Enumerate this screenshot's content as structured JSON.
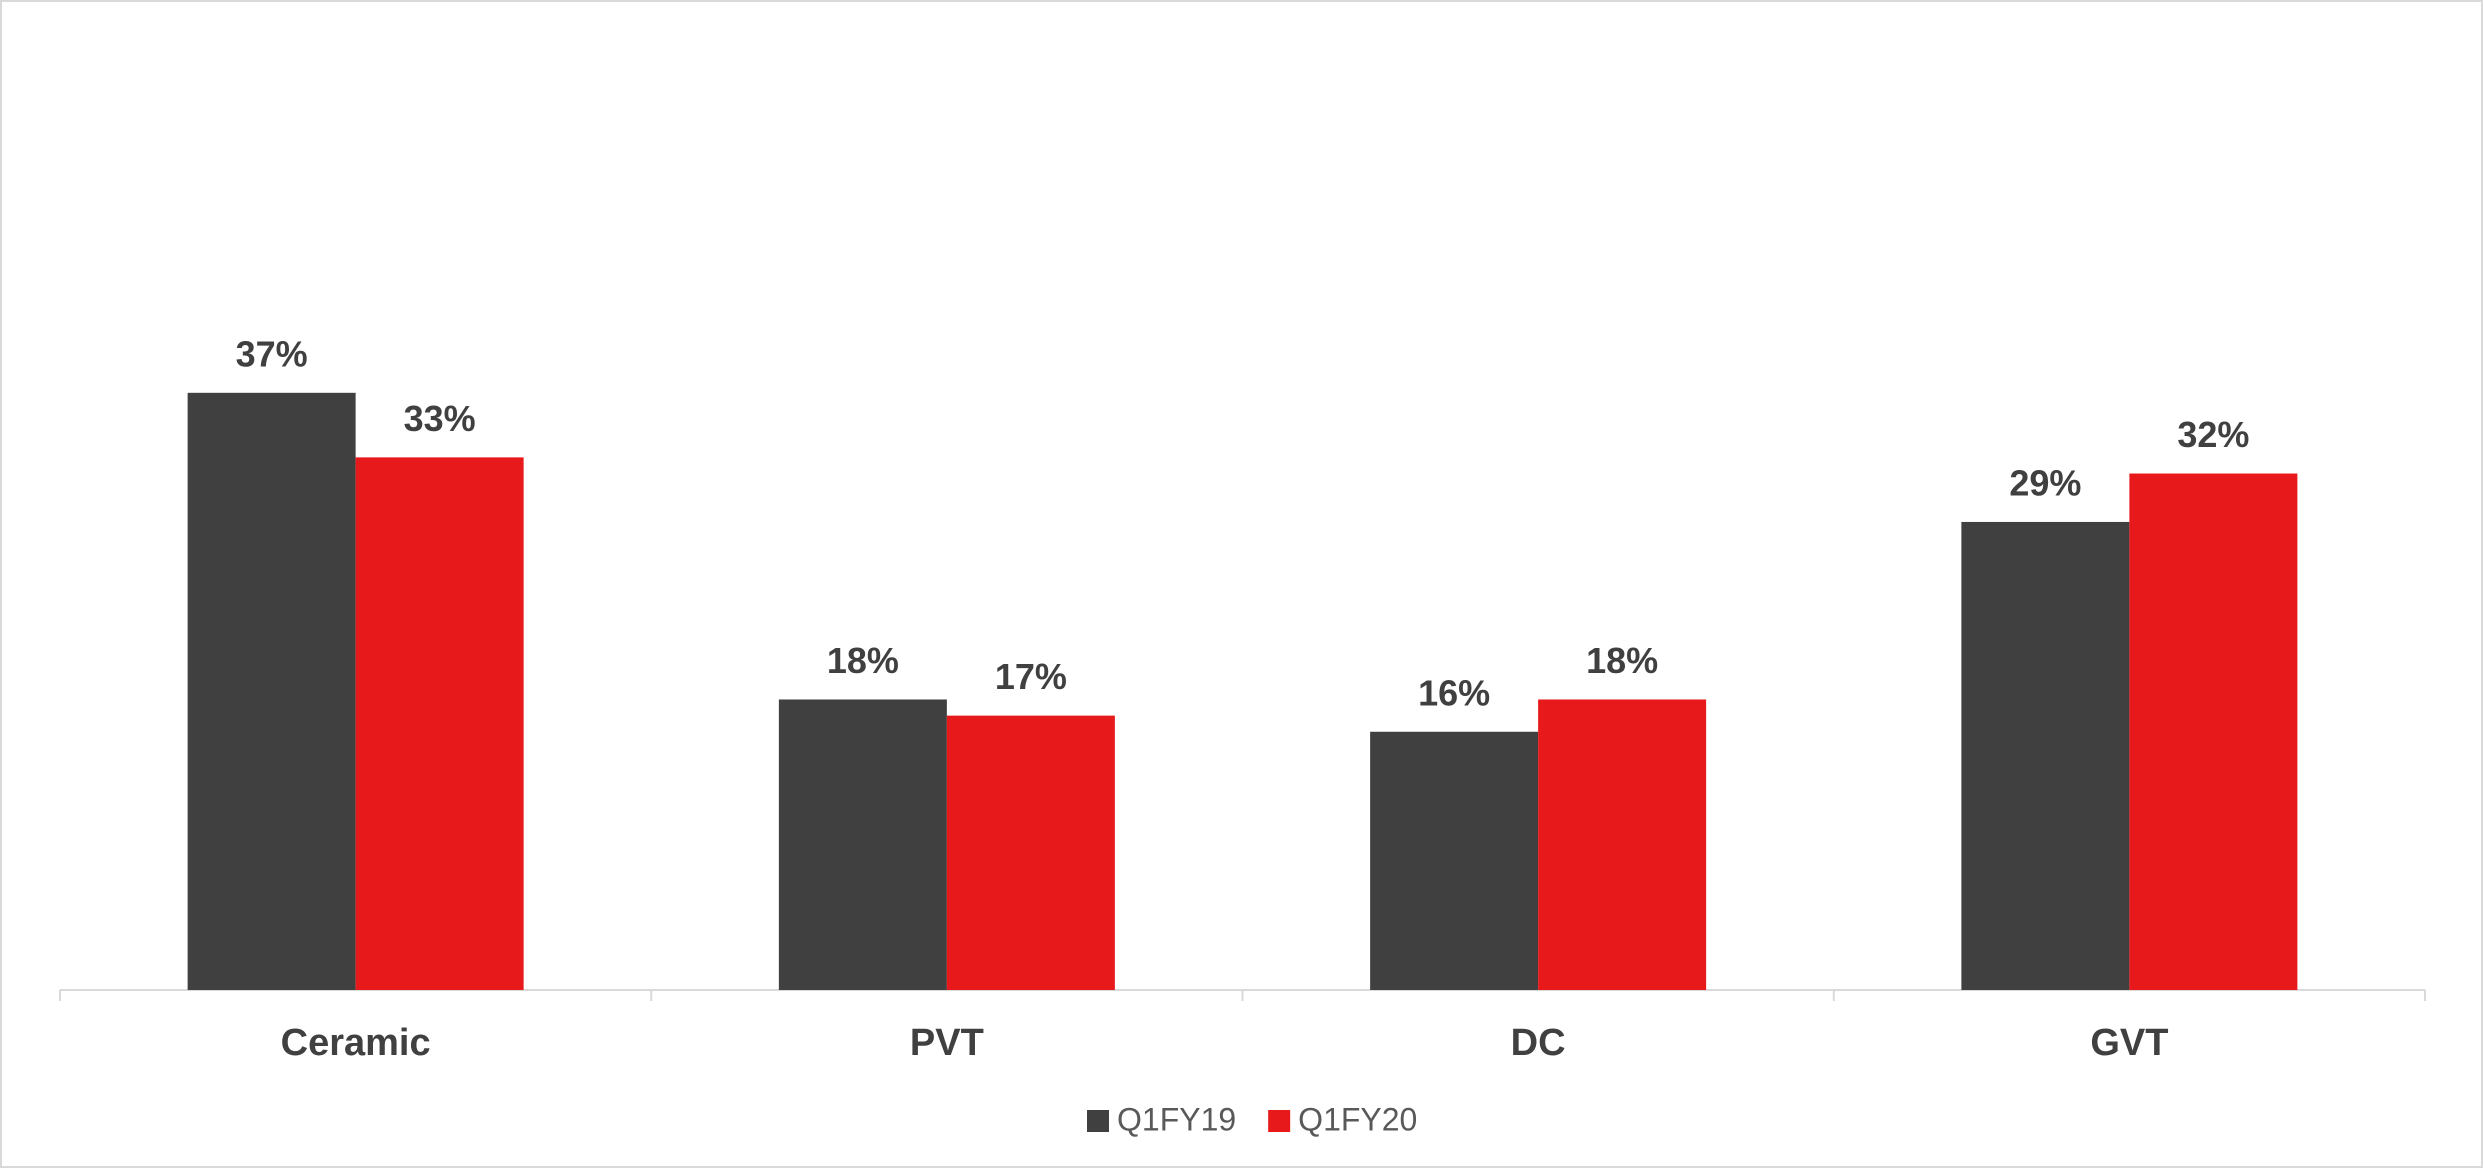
{
  "chart_data": {
    "type": "bar",
    "categories": [
      "Ceramic",
      "PVT",
      "DC",
      "GVT"
    ],
    "series": [
      {
        "name": "Q1FY19",
        "color": "#404040",
        "values": [
          37,
          18,
          16,
          29
        ],
        "value_labels": [
          "37%",
          "18%",
          "16%",
          "29%"
        ]
      },
      {
        "name": "Q1FY20",
        "color": "#e8191a",
        "values": [
          33,
          17,
          18,
          32
        ],
        "value_labels": [
          "33%",
          "17%",
          "18%",
          "32%"
        ]
      }
    ],
    "ylim": [
      0,
      50
    ],
    "legend": "bottom"
  }
}
